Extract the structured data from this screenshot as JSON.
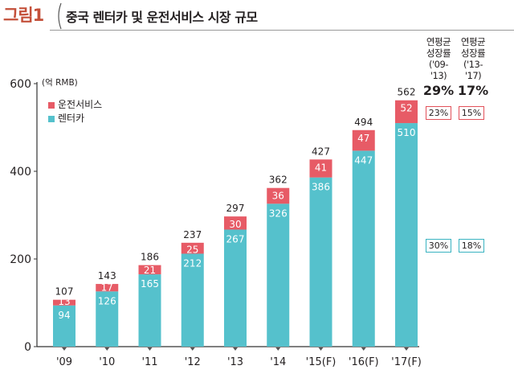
{
  "figure": {
    "label": "그림1",
    "title": "중국 렌터카 및 운전서비스 시장 규모"
  },
  "colors": {
    "renter": "#55c1cc",
    "driver": "#e75b66",
    "accent": "#c4503a"
  },
  "chart_data": {
    "type": "bar",
    "stacked": true,
    "unit": "(억 RMB)",
    "categories": [
      "'09",
      "'10",
      "'11",
      "'12",
      "'13",
      "'14",
      "'15(F)",
      "'16(F)",
      "'17(F)"
    ],
    "series": [
      {
        "name": "렌터카",
        "values": [
          94,
          126,
          165,
          212,
          267,
          326,
          386,
          447,
          510
        ]
      },
      {
        "name": "운전서비스",
        "values": [
          13,
          17,
          21,
          25,
          30,
          36,
          41,
          47,
          52
        ]
      }
    ],
    "totals": [
      107,
      143,
      186,
      237,
      297,
      362,
      427,
      494,
      562
    ],
    "y_ticks": [
      0,
      200,
      400,
      600
    ],
    "ylim": [
      0,
      600
    ],
    "legend_position": "top-left"
  },
  "cagr": {
    "columns": [
      {
        "header": [
          "연평균",
          "성장률",
          "('09-'13)"
        ],
        "total": "29%",
        "driver": "23%",
        "renter": "30%"
      },
      {
        "header": [
          "연평균",
          "성장률",
          "('13-'17)"
        ],
        "total": "17%",
        "driver": "15%",
        "renter": "18%"
      }
    ]
  }
}
